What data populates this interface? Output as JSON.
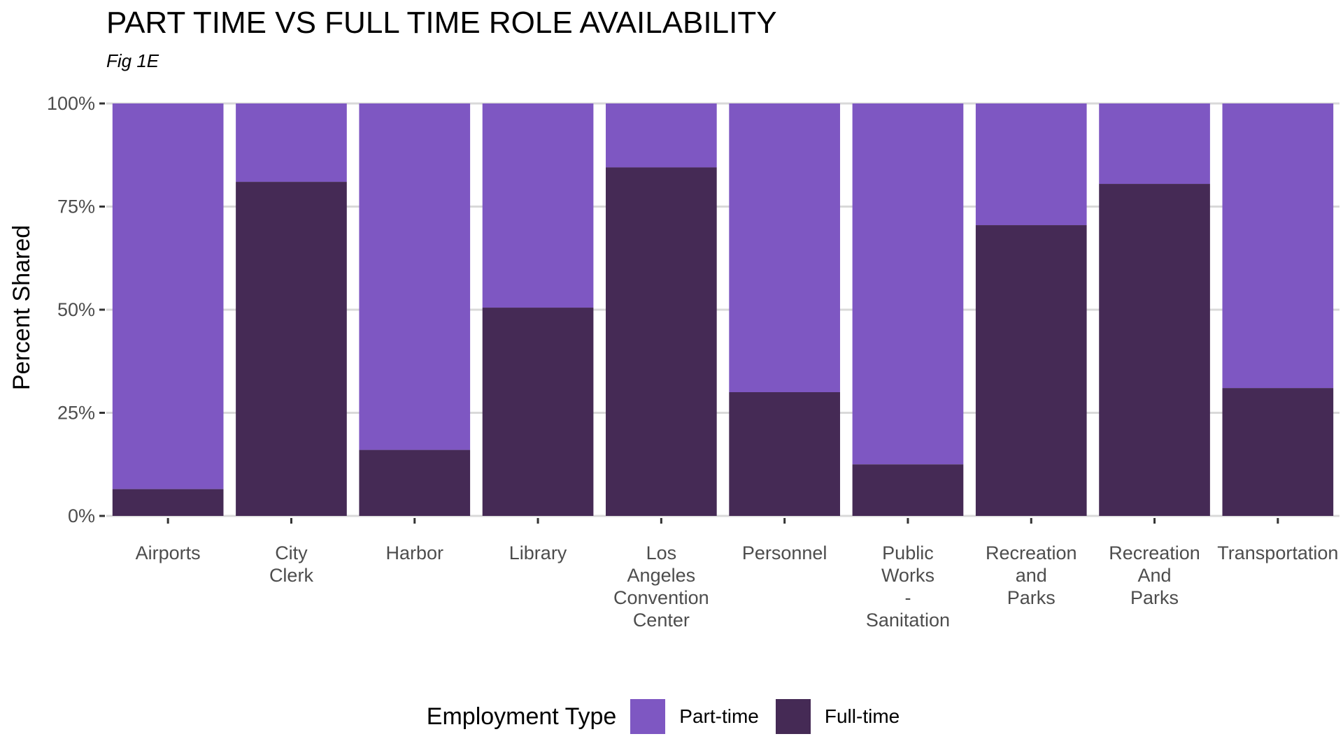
{
  "title": "PART TIME VS FULL TIME ROLE AVAILABILITY",
  "subtitle": "Fig 1E",
  "colors": {
    "part_time": "#7e57c2",
    "full_time": "#452a55",
    "grid": "#d9d9d9",
    "axis_text": "#4d4d4d"
  },
  "legend": {
    "title": "Employment Type",
    "items": [
      {
        "label": "Part-time",
        "color": "#7e57c2"
      },
      {
        "label": "Full-time",
        "color": "#452a55"
      }
    ]
  },
  "chart_data": {
    "type": "bar",
    "stacked": "percent",
    "title": "PART TIME VS FULL TIME ROLE AVAILABILITY",
    "subtitle": "Fig 1E",
    "xlabel": "",
    "ylabel": "Percent Shared",
    "ylim": [
      0,
      100
    ],
    "yticks": [
      "0%",
      "25%",
      "50%",
      "75%",
      "100%"
    ],
    "yticks_values": [
      0,
      25,
      50,
      75,
      100
    ],
    "grid": true,
    "legend_position": "bottom",
    "categories": [
      [
        "Airports"
      ],
      [
        "City",
        "Clerk"
      ],
      [
        "Harbor"
      ],
      [
        "Library"
      ],
      [
        "Los",
        "Angeles",
        "Convention",
        "Center"
      ],
      [
        "Personnel"
      ],
      [
        "Public",
        "Works",
        "-",
        "Sanitation"
      ],
      [
        "Recreation",
        "and",
        "Parks"
      ],
      [
        "Recreation",
        "And",
        "Parks"
      ],
      [
        "Transportation"
      ]
    ],
    "series": [
      {
        "name": "Full-time",
        "values": [
          6.5,
          81,
          16,
          50.5,
          84.5,
          30,
          12.5,
          70.5,
          80.5,
          31
        ]
      },
      {
        "name": "Part-time",
        "values": [
          93.5,
          19,
          84,
          49.5,
          15.5,
          70,
          87.5,
          29.5,
          19.5,
          69
        ]
      }
    ]
  }
}
